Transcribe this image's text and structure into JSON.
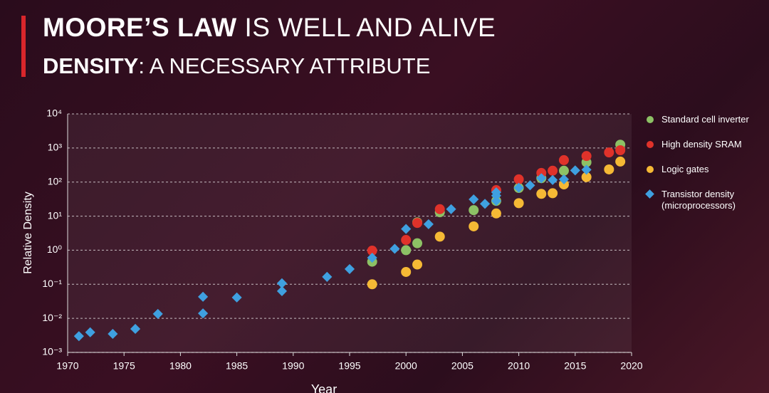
{
  "chart_data": {
    "type": "scatter",
    "title_bold": "MOORE’S LAW",
    "title_rest": "IS WELL AND ALIVE",
    "subtitle_bold": "DENSITY",
    "subtitle_rest": ": A NECESSARY ATTRIBUTE",
    "x_label": "Year",
    "y_label": "Relative Density",
    "log_y": true,
    "grid": true,
    "legend": "right",
    "xlim": [
      1970,
      2020
    ],
    "xticks": [
      1970,
      1975,
      1980,
      1985,
      1990,
      1995,
      2000,
      2005,
      2010,
      2015,
      2020
    ],
    "ylim": [
      0.001,
      10000
    ],
    "yticks": [
      {
        "value": 0.001,
        "label": "10⁻³"
      },
      {
        "value": 0.01,
        "label": "10⁻²"
      },
      {
        "value": 0.1,
        "label": "10⁻¹"
      },
      {
        "value": 1,
        "label": "10⁰"
      },
      {
        "value": 10,
        "label": "10¹"
      },
      {
        "value": 100,
        "label": "10²"
      },
      {
        "value": 1000,
        "label": "10³"
      },
      {
        "value": 10000,
        "label": "10⁴"
      }
    ],
    "series": [
      {
        "name": "Standard cell inverter",
        "color": "#8dc165",
        "marker": "circle",
        "x": [
          1997,
          2000,
          2001,
          2001,
          2003,
          2006,
          2008,
          2010,
          2012,
          2014,
          2016,
          2019
        ],
        "values": [
          0.46,
          1.0,
          1.6,
          6.6,
          13,
          15,
          28,
          67,
          130,
          215,
          380,
          1250
        ]
      },
      {
        "name": "High density SRAM",
        "color": "#e0322a",
        "marker": "circle",
        "x": [
          1997,
          2000,
          2001,
          2003,
          2008,
          2010,
          2012,
          2013,
          2014,
          2016,
          2018,
          2019
        ],
        "values": [
          0.97,
          2,
          6.3,
          16,
          58,
          120,
          185,
          215,
          440,
          580,
          740,
          860
        ]
      },
      {
        "name": "Logic gates",
        "color": "#f5b935",
        "marker": "circle",
        "x": [
          1997,
          2000,
          2001,
          2003,
          2006,
          2008,
          2010,
          2012,
          2013,
          2014,
          2016,
          2018,
          2019
        ],
        "values": [
          0.1,
          0.23,
          0.38,
          2.5,
          5,
          12,
          24,
          45,
          47,
          85,
          140,
          235,
          400
        ]
      },
      {
        "name": "Transistor density (microprocessors)",
        "color": "#3fa0e0",
        "marker": "diamond",
        "x": [
          1971,
          1972,
          1974,
          1976,
          1978,
          1982,
          1982,
          1985,
          1989,
          1989,
          1993,
          1995,
          1997,
          1999,
          2000,
          2002,
          2004,
          2006,
          2007,
          2008,
          2008,
          2008,
          2010,
          2011,
          2012,
          2013,
          2014,
          2015,
          2016
        ],
        "values": [
          0.003,
          0.0039,
          0.0035,
          0.0049,
          0.0135,
          0.043,
          0.014,
          0.041,
          0.107,
          0.063,
          0.165,
          0.28,
          0.6,
          1.1,
          4.2,
          5.8,
          16,
          31,
          23,
          28,
          40,
          50,
          68,
          80,
          130,
          115,
          120,
          220,
          230
        ]
      }
    ]
  }
}
